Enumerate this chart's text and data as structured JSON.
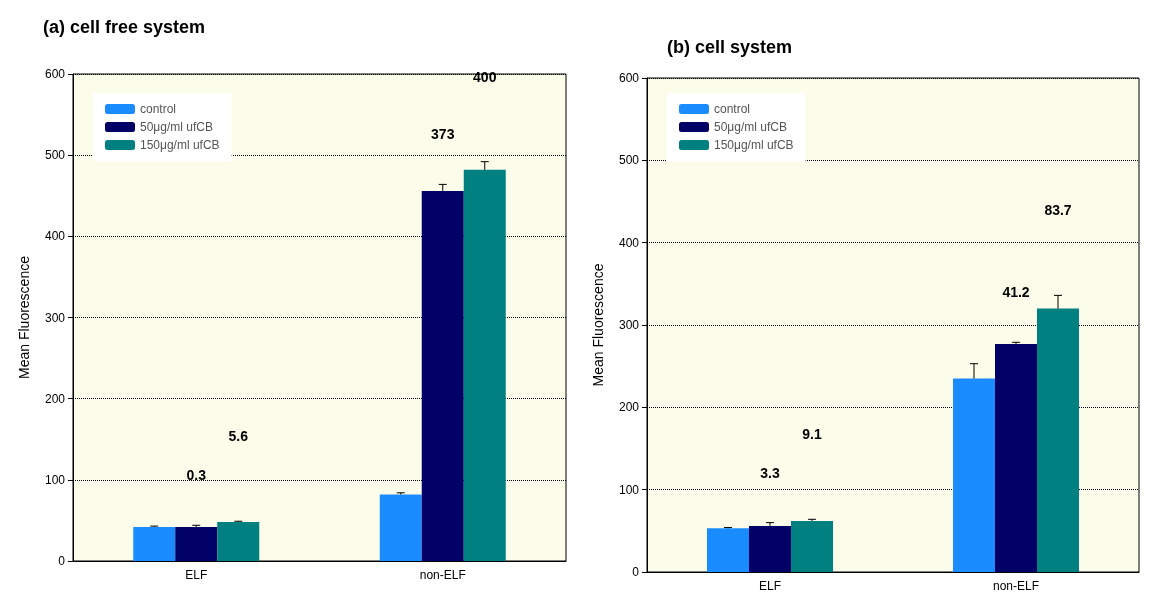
{
  "chart_data": [
    {
      "type": "bar",
      "title": "(a) cell free system",
      "ylabel": "Mean Fluorescence",
      "categories": [
        "ELF",
        "non-ELF"
      ],
      "ylim": [
        0,
        600
      ],
      "yticks": [
        0,
        100,
        200,
        300,
        400,
        500,
        600
      ],
      "grid": "y",
      "legend": "top left",
      "series": [
        {
          "name": "control",
          "color": "#1a8cff",
          "values": [
            42,
            82
          ],
          "errors": [
            1,
            2
          ]
        },
        {
          "name": "50μg/ml ufCB",
          "color": "#000066",
          "values": [
            42,
            456
          ],
          "errors": [
            2,
            8
          ]
        },
        {
          "name": "150μg/ml ufCB",
          "color": "#008080",
          "values": [
            48,
            482
          ],
          "errors": [
            1,
            10
          ]
        }
      ],
      "annotations": [
        "0.3",
        "5.6",
        "373",
        "400"
      ]
    },
    {
      "type": "bar",
      "title": "(b) cell system",
      "ylabel": "Mean Fluorescence",
      "categories": [
        "ELF",
        "non-ELF"
      ],
      "ylim": [
        0,
        600
      ],
      "yticks": [
        0,
        100,
        200,
        300,
        400,
        500,
        600
      ],
      "grid": "y",
      "legend": "top left",
      "series": [
        {
          "name": "control",
          "color": "#1a8cff",
          "values": [
            53,
            235
          ],
          "errors": [
            1,
            18
          ]
        },
        {
          "name": "50μg/ml ufCB",
          "color": "#000066",
          "values": [
            56,
            277
          ],
          "errors": [
            4,
            2
          ]
        },
        {
          "name": "150μg/ml ufCB",
          "color": "#008080",
          "values": [
            62,
            320
          ],
          "errors": [
            2,
            16
          ]
        }
      ],
      "annotations": [
        "3.3",
        "9.1",
        "41.2",
        "83.7"
      ]
    }
  ]
}
